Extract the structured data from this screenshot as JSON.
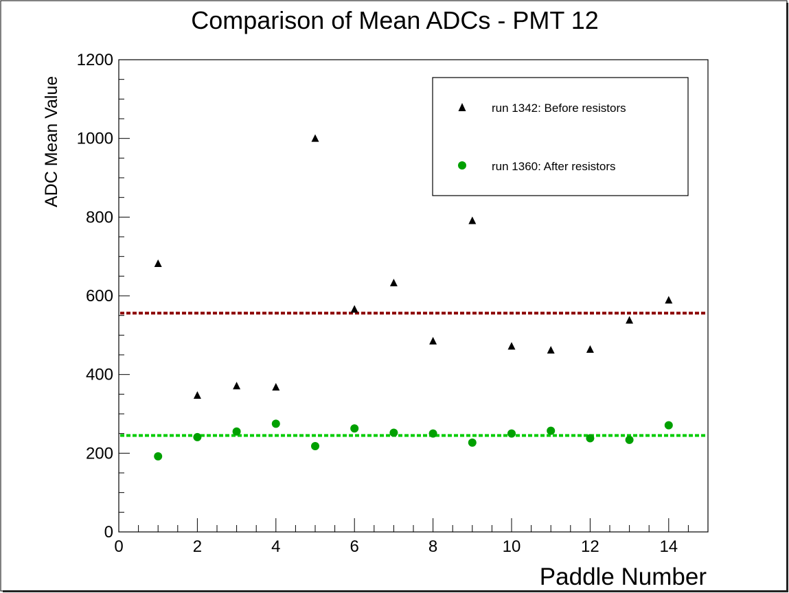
{
  "chart_data": {
    "type": "scatter",
    "title": "Comparison of Mean ADCs - PMT 12",
    "xlabel": "Paddle Number",
    "ylabel": "ADC Mean Value",
    "xlim": [
      0,
      15
    ],
    "ylim": [
      0,
      1200
    ],
    "xticks": [
      0,
      2,
      4,
      6,
      8,
      10,
      12,
      14
    ],
    "yticks": [
      0,
      200,
      400,
      600,
      800,
      1000,
      1200
    ],
    "grid": false,
    "legend_position": "top-right",
    "series": [
      {
        "name": "run 1342: Before resistors",
        "marker": "triangle",
        "color": "#000000",
        "x": [
          1,
          2,
          3,
          4,
          5,
          6,
          7,
          8,
          9,
          10,
          11,
          12,
          13,
          14
        ],
        "y": [
          682,
          347,
          371,
          368,
          1000,
          566,
          633,
          485,
          791,
          472,
          462,
          464,
          538,
          589
        ],
        "mean": 556,
        "mean_line_color": "#8b0000"
      },
      {
        "name": "run 1360: After resistors",
        "marker": "circle",
        "color": "#00a000",
        "x": [
          1,
          2,
          3,
          4,
          5,
          6,
          7,
          8,
          9,
          10,
          11,
          12,
          13,
          14
        ],
        "y": [
          192,
          241,
          255,
          275,
          218,
          263,
          252,
          250,
          227,
          250,
          257,
          238,
          234,
          271
        ],
        "mean": 245,
        "mean_line_color": "#00cc00"
      }
    ]
  }
}
